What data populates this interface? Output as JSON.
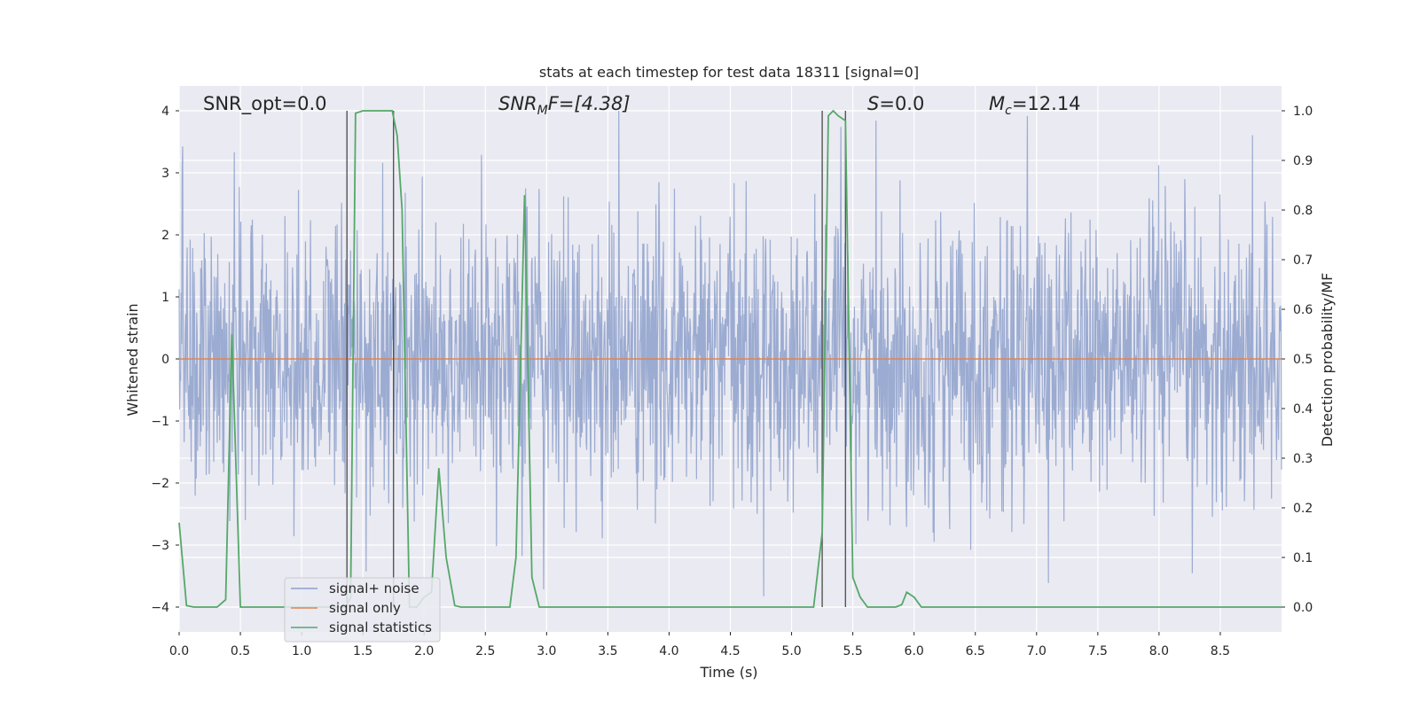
{
  "chart_data": {
    "type": "line",
    "title": "stats at each timestep for test data 18311 [signal=0]",
    "xlabel": "Time (s)",
    "ylabel_left": "Whitened strain",
    "ylabel_right": "Detection probability/MF",
    "xlim": [
      0.0,
      9.0
    ],
    "ylim_left": [
      -4.4,
      4.4
    ],
    "ylim_right": [
      -0.05,
      1.05
    ],
    "xticks": [
      "0.0",
      "0.5",
      "1.0",
      "1.5",
      "2.0",
      "2.5",
      "3.0",
      "3.5",
      "4.0",
      "4.5",
      "5.0",
      "5.5",
      "6.0",
      "6.5",
      "7.0",
      "7.5",
      "8.0",
      "8.5"
    ],
    "yticks_left": [
      "−4",
      "−3",
      "−2",
      "−1",
      "0",
      "1",
      "2",
      "3",
      "4"
    ],
    "yticks_right": [
      "0.0",
      "0.1",
      "0.2",
      "0.3",
      "0.4",
      "0.5",
      "0.6",
      "0.7",
      "0.8",
      "0.9",
      "1.0"
    ],
    "grid": true,
    "legend_placement": "lower-left",
    "colors": {
      "noise": "#8da0cb",
      "signal_only": "#dd8452",
      "statistics": "#55a868",
      "marker_lines": "#555555",
      "background": "#eaeaf2"
    },
    "annotations": {
      "snr_opt": "SNR_opt=0.0",
      "snr_mf_label": "SNR",
      "snr_mf_sub": "M",
      "snr_mf_rest": "F=[4.38]",
      "s_label": "S",
      "s_rest": "=0.0",
      "mc_label": "M",
      "mc_sub": "c",
      "mc_rest": "=12.14"
    },
    "series": [
      {
        "name": "signal+ noise",
        "axis": "left",
        "envelope_note": "dense whitened noise, typical amplitude about 1.5-2.5 with spikes up to 4",
        "seed": 18311,
        "duration": 9.0
      },
      {
        "name": "signal only",
        "axis": "left",
        "x": [
          0.0,
          9.0
        ],
        "y": [
          0.0,
          0.0
        ]
      },
      {
        "name": "signal statistics",
        "axis": "right",
        "x": [
          0.0,
          0.06,
          0.12,
          0.19,
          0.25,
          0.31,
          0.38,
          0.43,
          0.5,
          0.56,
          0.62,
          0.7,
          0.8,
          1.0,
          1.2,
          1.3,
          1.36,
          1.4,
          1.44,
          1.5,
          1.56,
          1.62,
          1.68,
          1.74,
          1.78,
          1.82,
          1.88,
          1.94,
          2.0,
          2.06,
          2.12,
          2.18,
          2.25,
          2.3,
          2.4,
          2.5,
          2.6,
          2.7,
          2.75,
          2.82,
          2.88,
          2.94,
          3.0,
          3.5,
          4.0,
          4.5,
          5.0,
          5.18,
          5.25,
          5.3,
          5.34,
          5.38,
          5.44,
          5.5,
          5.56,
          5.62,
          5.7,
          5.85,
          5.9,
          5.94,
          6.0,
          6.06,
          6.5,
          7.0,
          8.0,
          9.0
        ],
        "y": [
          0.17,
          0.003,
          0.0,
          0.0,
          0.0,
          0.0,
          0.015,
          0.55,
          0.0,
          0.0,
          0.0,
          0.0,
          0.0,
          0.0,
          0.0,
          0.0,
          0.0,
          0.02,
          0.995,
          1.0,
          1.0,
          1.0,
          1.0,
          1.0,
          0.95,
          0.8,
          0.0,
          0.0,
          0.02,
          0.03,
          0.28,
          0.1,
          0.003,
          0.0,
          0.0,
          0.0,
          0.0,
          0.0,
          0.1,
          0.83,
          0.06,
          0.0,
          0.0,
          0.0,
          0.0,
          0.0,
          0.0,
          0.0,
          0.15,
          0.99,
          1.0,
          0.99,
          0.98,
          0.06,
          0.02,
          0.0,
          0.0,
          0.0,
          0.005,
          0.03,
          0.02,
          0.0,
          0.0,
          0.0,
          0.0,
          0.0
        ]
      }
    ],
    "vertical_markers_x": [
      1.37,
      1.75,
      5.25,
      5.44
    ]
  }
}
